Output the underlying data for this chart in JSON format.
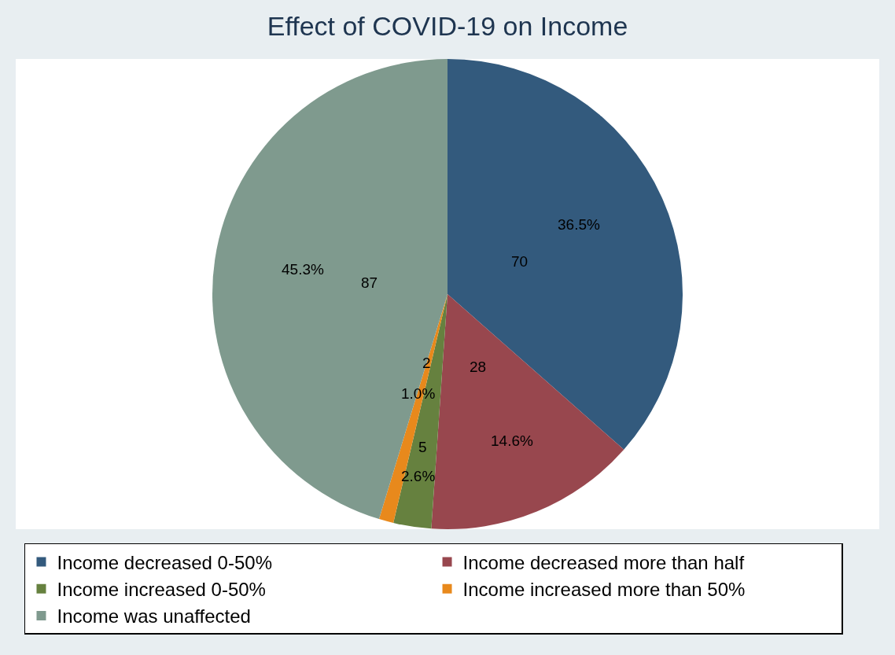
{
  "chart_data": {
    "type": "pie",
    "title": "Effect of COVID-19 on Income",
    "categories": [
      "Income decreased 0-50%",
      "Income decreased more than half",
      "Income increased 0-50%",
      "Income increased more than 50%",
      "Income was unaffected"
    ],
    "values": [
      36.5,
      14.6,
      2.6,
      1.0,
      45.3
    ],
    "annotations": [
      "70",
      "28",
      "5",
      "2",
      "87"
    ],
    "colors": [
      "#335a7d",
      "#98474e",
      "#66813f",
      "#e8891c",
      "#7f9a8e"
    ],
    "value_labels": [
      "36.5%",
      "14.6%",
      "2.6%",
      "1.0%",
      "45.3%"
    ],
    "legend": "bottom"
  }
}
